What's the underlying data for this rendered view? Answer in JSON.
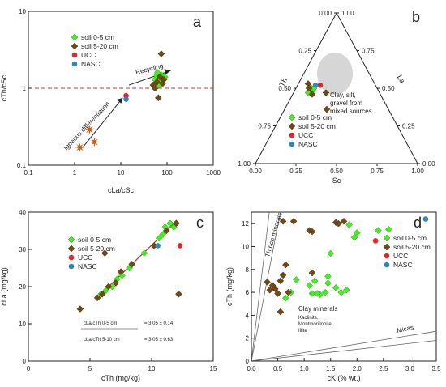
{
  "colors": {
    "soil_0_5": "#44ee22",
    "soil_5_20": "#704a16",
    "ucc": "#e0262a",
    "nasc": "#2e86c1",
    "ref_line": "#e03030",
    "star": "#c8601a",
    "axis": "#222222"
  },
  "panel_a": {
    "label": "a",
    "ylabel": "cTh/cSc",
    "xlabel": "cLa/cSc",
    "xticks": [
      "0.1",
      "1",
      "10",
      "100",
      "1000"
    ],
    "yticks": [
      "0.1",
      "1",
      "10"
    ],
    "annotations": {
      "igneous": "Igneous differentiation",
      "recycling": "Recycling"
    },
    "legend": [
      "soil 0-5 cm",
      "soil 5-20 cm",
      "UCC",
      "NASC"
    ]
  },
  "panel_b": {
    "label": "b",
    "corner_labels": {
      "top": "Sc",
      "left": "Th",
      "right": "La"
    },
    "edge_ticks": [
      "0.00",
      "0.25",
      "0.50",
      "0.75",
      "1.00"
    ],
    "bottom_axis_title": "Sc",
    "left_axis_title": "Th",
    "right_axis_title": "La",
    "annotation": "Clay, silt, gravel from mixed sources",
    "legend": [
      "soil 0-5 cm",
      "soil 5-20 cm",
      "UCC",
      "NASC"
    ]
  },
  "panel_c": {
    "label": "c",
    "ylabel": "cLa (mg/kg)",
    "xlabel": "cTh (mg/kg)",
    "xticks": [
      "0",
      "5",
      "10",
      "15"
    ],
    "yticks": [
      "0",
      "10",
      "20",
      "30",
      "40"
    ],
    "ratio1_label": "cLa/cTh 0-5 cm",
    "ratio1_value": "= 3.05 ± 0.14",
    "ratio2_label": "cLa/cTh 5-10 cm",
    "ratio2_value": "= 3.05 ± 0.63",
    "legend": [
      "soil 0-5 cm",
      "soil 5-20 cm",
      "UCC",
      "NASC"
    ]
  },
  "panel_d": {
    "label": "d",
    "ylabel": "cTh (mg/kg)",
    "xlabel": "cK (% wt.)",
    "xticks": [
      "0.0",
      "0.5",
      "1.0",
      "1.5",
      "2.0",
      "2.5",
      "3.0",
      "3.5"
    ],
    "yticks": [
      "0",
      "2",
      "4",
      "6",
      "8",
      "10",
      "12"
    ],
    "annotations": {
      "th_rich": "Th rich minerals",
      "clay": "Clay minerals",
      "clay_sub1": "Kaolinite,",
      "clay_sub2": "Montmorillonite,",
      "clay_sub3": "Illite",
      "micas": "Micas"
    },
    "legend": [
      "soil 0-5 cm",
      "soil 5-20 cm",
      "UCC",
      "NASC"
    ]
  },
  "chart_data": [
    {
      "type": "scatter",
      "panel": "a",
      "xlabel": "cLa/cSc",
      "ylabel": "cTh/cSc",
      "xscale": "log",
      "yscale": "log",
      "xlim": [
        0.1,
        1000
      ],
      "ylim": [
        0.1,
        10
      ],
      "reference_line_y": 1,
      "series": [
        {
          "name": "soil 0-5 cm",
          "x": [
            55,
            60,
            65,
            70,
            75,
            80,
            85,
            62,
            68,
            90
          ],
          "y": [
            1.3,
            1.45,
            1.2,
            1.35,
            1.5,
            1.25,
            1.3,
            1.6,
            1.1,
            1.4
          ]
        },
        {
          "name": "soil 5-20 cm",
          "x": [
            75,
            55,
            60,
            65,
            70,
            85,
            50,
            80
          ],
          "y": [
            2.8,
            1.0,
            1.2,
            0.75,
            1.4,
            1.3,
            1.1,
            1.15
          ]
        },
        {
          "name": "UCC",
          "x": [
            13
          ],
          "y": [
            0.8
          ]
        },
        {
          "name": "NASC",
          "x": [
            13
          ],
          "y": [
            0.72
          ]
        },
        {
          "name": "",
          "x": [
            1.3,
            2.1,
            2.7
          ],
          "y": [
            0.17,
            0.29,
            0.2
          ]
        }
      ]
    },
    {
      "type": "ternary",
      "panel": "b",
      "components": [
        "Sc",
        "Th",
        "La"
      ],
      "series": [
        {
          "name": "soil 0-5 cm",
          "points": [
            [
              0.48,
              0.43,
              0.09
            ],
            [
              0.5,
              0.42,
              0.08
            ],
            [
              0.49,
              0.4,
              0.11
            ],
            [
              0.51,
              0.41,
              0.08
            ],
            [
              0.47,
              0.44,
              0.09
            ],
            [
              0.5,
              0.39,
              0.11
            ]
          ]
        },
        {
          "name": "soil 5-20 cm",
          "points": [
            [
              0.46,
              0.42,
              0.12
            ],
            [
              0.53,
              0.41,
              0.06
            ],
            [
              0.36,
              0.38,
              0.26
            ],
            [
              0.47,
              0.33,
              0.2
            ],
            [
              0.5,
              0.42,
              0.08
            ]
          ]
        },
        {
          "name": "UCC",
          "points": [
            [
              0.52,
              0.34,
              0.14
            ]
          ]
        },
        {
          "name": "NASC",
          "points": [
            [
              0.52,
              0.37,
              0.11
            ]
          ]
        }
      ]
    },
    {
      "type": "scatter",
      "panel": "c",
      "xlabel": "cTh (mg/kg)",
      "ylabel": "cLa (mg/kg)",
      "xlim": [
        0,
        15
      ],
      "ylim": [
        0,
        40
      ],
      "fit_line": {
        "x": [
          5.5,
          12
        ],
        "y": [
          16.8,
          37.5
        ]
      },
      "series": [
        {
          "name": "soil 0-5 cm",
          "x": [
            5.9,
            6.3,
            6.8,
            7.2,
            7.6,
            8.2,
            9.4,
            10.6,
            10.9,
            11.1,
            11.5,
            11.8,
            12.0
          ],
          "y": [
            18,
            19,
            20,
            22,
            23,
            25,
            29,
            33,
            34,
            36,
            37,
            36,
            37
          ]
        },
        {
          "name": "soil 5-20 cm",
          "x": [
            4.2,
            5.6,
            6.0,
            6.5,
            7.1,
            7.5,
            8.4,
            10.2,
            11.2,
            12.0,
            6.2,
            12.2
          ],
          "y": [
            14,
            17,
            18,
            20,
            21,
            24,
            26,
            31,
            35,
            37,
            29,
            18
          ]
        },
        {
          "name": "UCC",
          "x": [
            12.3
          ],
          "y": [
            31
          ]
        },
        {
          "name": "NASC",
          "x": [
            10.5
          ],
          "y": [
            31
          ]
        }
      ]
    },
    {
      "type": "scatter",
      "panel": "d",
      "xlabel": "cK (% wt.)",
      "ylabel": "cTh (mg/kg)",
      "xlim": [
        0,
        3.5
      ],
      "ylim": [
        0,
        13
      ],
      "series": [
        {
          "name": "soil 0-5 cm",
          "x": [
            0.65,
            0.75,
            0.85,
            1.1,
            1.15,
            1.2,
            1.3,
            1.4,
            1.45,
            1.5,
            1.6,
            1.7,
            1.8,
            1.85,
            1.95,
            2.0,
            2.4,
            2.6,
            1.45,
            1.25
          ],
          "y": [
            5.5,
            6.0,
            7.1,
            6.6,
            5.9,
            7.0,
            5.8,
            6.0,
            7.4,
            9.4,
            6.4,
            6.0,
            6.2,
            11.9,
            10.8,
            11.2,
            11.4,
            11.5,
            6.8,
            5.9
          ]
        },
        {
          "name": "soil 5-20 cm",
          "x": [
            0.3,
            0.35,
            0.4,
            0.5,
            0.55,
            0.6,
            0.6,
            0.65,
            0.7,
            0.8,
            1.1,
            1.15,
            1.15,
            1.6,
            1.65,
            1.75,
            0.55,
            0.5,
            0.45
          ],
          "y": [
            6.9,
            6.2,
            6.6,
            5.9,
            4.3,
            12.2,
            7.5,
            8.4,
            6.0,
            12.2,
            11.4,
            11.3,
            7.7,
            12.1,
            12.0,
            12.2,
            7.0,
            5.9,
            6.3
          ]
        },
        {
          "name": "UCC",
          "x": [
            2.35
          ],
          "y": [
            10.5
          ]
        },
        {
          "name": "NASC",
          "x": [
            3.3
          ],
          "y": [
            12.4
          ]
        }
      ]
    }
  ]
}
